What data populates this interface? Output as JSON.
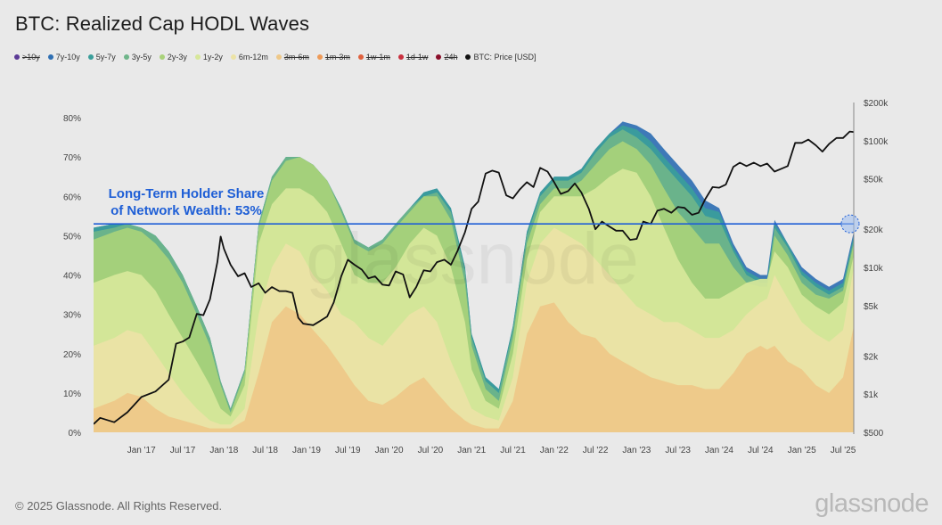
{
  "header": {
    "title": "BTC: Realized Cap HODL Waves"
  },
  "legend": [
    {
      "label": ">10y",
      "color": "#5b3a96",
      "active": false
    },
    {
      "label": "7y-10y",
      "color": "#2f6fb3",
      "active": true
    },
    {
      "label": "5y-7y",
      "color": "#3a9e9a",
      "active": true
    },
    {
      "label": "3y-5y",
      "color": "#6fb58a",
      "active": true
    },
    {
      "label": "2y-3y",
      "color": "#a9d27a",
      "active": true
    },
    {
      "label": "1y-2y",
      "color": "#d7e79a",
      "active": true
    },
    {
      "label": "6m-12m",
      "color": "#ece3a6",
      "active": true
    },
    {
      "label": "3m-6m",
      "color": "#eec888",
      "active": false
    },
    {
      "label": "1m-3m",
      "color": "#ee9a57",
      "active": false
    },
    {
      "label": "1w-1m",
      "color": "#e0613e",
      "active": false
    },
    {
      "label": "1d-1w",
      "color": "#c9303f",
      "active": false
    },
    {
      "label": "24h",
      "color": "#8b0f2a",
      "active": false
    },
    {
      "label": "BTC: Price [USD]",
      "color": "#111111",
      "active": true
    }
  ],
  "watermark": "glassnode",
  "footer": {
    "copyright": "© 2025 Glassnode. All Rights Reserved.",
    "brand": "glassnode"
  },
  "chart_data": {
    "type": "area",
    "title": "BTC: Realized Cap HODL Waves",
    "xlabel": "",
    "ylabel": "",
    "x_ticks": [
      "Jan '17",
      "Jul '17",
      "Jan '18",
      "Jul '18",
      "Jan '19",
      "Jul '19",
      "Jan '20",
      "Jul '20",
      "Jan '21",
      "Jul '21",
      "Jan '22",
      "Jul '22",
      "Jan '23",
      "Jul '23",
      "Jan '24",
      "Jul '24",
      "Jan '25",
      "Jul '25"
    ],
    "x_range": [
      2016.42,
      2025.63
    ],
    "y_left": {
      "ticks": [
        "0%",
        "10%",
        "20%",
        "30%",
        "40%",
        "50%",
        "60%",
        "70%",
        "80%"
      ],
      "range": [
        0,
        80
      ]
    },
    "y_right": {
      "ticks": [
        "$500",
        "$1k",
        "$2k",
        "$5k",
        "$10k",
        "$20k",
        "$50k",
        "$100k",
        "$200k"
      ],
      "scale": "log",
      "range": [
        500,
        200000
      ]
    },
    "x": [
      2016.42,
      2016.67,
      2016.83,
      2017.0,
      2017.17,
      2017.33,
      2017.5,
      2017.67,
      2017.83,
      2017.96,
      2018.08,
      2018.25,
      2018.42,
      2018.58,
      2018.75,
      2018.92,
      2019.08,
      2019.25,
      2019.42,
      2019.58,
      2019.75,
      2019.92,
      2020.08,
      2020.25,
      2020.42,
      2020.58,
      2020.75,
      2020.92,
      2021.0,
      2021.17,
      2021.33,
      2021.5,
      2021.67,
      2021.83,
      2022.0,
      2022.17,
      2022.33,
      2022.5,
      2022.67,
      2022.83,
      2023.0,
      2023.17,
      2023.33,
      2023.5,
      2023.67,
      2023.83,
      2024.0,
      2024.17,
      2024.33,
      2024.5,
      2024.58,
      2024.67,
      2024.83,
      2025.0,
      2025.17,
      2025.33,
      2025.5,
      2025.63
    ],
    "series_cumulative": [
      {
        "name": "3m-6m",
        "values": [
          6,
          8,
          10,
          9,
          6,
          4,
          3,
          2,
          1,
          1,
          1,
          3,
          15,
          28,
          32,
          30,
          26,
          22,
          17,
          12,
          8,
          7,
          9,
          12,
          14,
          10,
          6,
          3,
          2,
          1,
          1,
          8,
          25,
          32,
          33,
          28,
          25,
          24,
          20,
          18,
          16,
          14,
          13,
          12,
          12,
          11,
          11,
          15,
          20,
          22,
          21,
          22,
          18,
          16,
          12,
          10,
          14,
          27
        ]
      },
      {
        "name": "6m-12m",
        "values": [
          22,
          24,
          26,
          25,
          20,
          15,
          10,
          6,
          3,
          2,
          2,
          6,
          30,
          42,
          48,
          46,
          40,
          36,
          30,
          28,
          24,
          22,
          26,
          30,
          32,
          28,
          18,
          10,
          6,
          4,
          3,
          14,
          38,
          48,
          52,
          50,
          48,
          44,
          40,
          36,
          32,
          30,
          28,
          28,
          26,
          24,
          24,
          26,
          30,
          33,
          34,
          40,
          34,
          28,
          25,
          23,
          26,
          42
        ]
      },
      {
        "name": "1y-2y",
        "values": [
          38,
          40,
          41,
          40,
          36,
          30,
          24,
          18,
          12,
          6,
          4,
          12,
          48,
          58,
          62,
          62,
          60,
          56,
          48,
          40,
          38,
          38,
          42,
          48,
          52,
          50,
          42,
          28,
          16,
          8,
          6,
          20,
          44,
          56,
          60,
          60,
          60,
          62,
          65,
          67,
          66,
          60,
          52,
          44,
          38,
          34,
          34,
          36,
          38,
          39,
          39,
          46,
          42,
          35,
          32,
          30,
          33,
          45
        ]
      },
      {
        "name": "2y-3y",
        "values": [
          49,
          51,
          52,
          51,
          48,
          44,
          38,
          30,
          22,
          12,
          5,
          15,
          52,
          64,
          69,
          70,
          68,
          64,
          56,
          48,
          46,
          48,
          52,
          56,
          60,
          60,
          54,
          38,
          22,
          11,
          8,
          24,
          48,
          58,
          62,
          62,
          64,
          68,
          72,
          74,
          72,
          68,
          62,
          56,
          52,
          48,
          48,
          42,
          38,
          37,
          37,
          50,
          45,
          38,
          35,
          34,
          36,
          48
        ]
      },
      {
        "name": "3y-5y",
        "values": [
          51,
          52,
          53,
          52,
          50,
          46,
          40,
          32,
          24,
          13,
          6,
          16,
          53,
          65,
          70,
          70,
          68,
          64,
          57,
          49,
          47,
          49,
          53,
          57,
          60,
          61,
          56,
          41,
          24,
          13,
          10,
          26,
          50,
          60,
          64,
          64,
          66,
          71,
          75,
          77,
          75,
          72,
          68,
          64,
          60,
          55,
          54,
          46,
          40,
          38,
          38,
          52,
          47,
          40,
          37,
          35,
          37,
          49
        ]
      },
      {
        "name": "5y-7y",
        "values": [
          52,
          53,
          53,
          52,
          50,
          46,
          40,
          32,
          24,
          13,
          6,
          16,
          53,
          65,
          70,
          70,
          68,
          64,
          57,
          49,
          47,
          49,
          53,
          57,
          61,
          62,
          57,
          42,
          25,
          14,
          11,
          27,
          51,
          61,
          65,
          65,
          67,
          72,
          76,
          78,
          77,
          74,
          70,
          66,
          62,
          57,
          56,
          47,
          41,
          39,
          39,
          53,
          48,
          41,
          38,
          36,
          38,
          50
        ]
      },
      {
        "name": "7y-10y",
        "values": [
          52,
          53,
          53,
          52,
          50,
          46,
          40,
          32,
          24,
          13,
          6,
          16,
          53,
          65,
          70,
          70,
          68,
          64,
          57,
          49,
          47,
          49,
          53,
          57,
          61,
          62,
          57,
          42,
          25,
          14,
          11,
          27,
          51,
          61,
          65,
          65,
          67,
          72,
          76,
          79,
          78,
          76,
          72,
          68,
          64,
          59,
          57,
          48,
          42,
          40,
          40,
          54,
          48,
          42,
          39,
          37,
          39,
          51
        ]
      }
    ],
    "price": {
      "name": "BTC: Price [USD]",
      "x": [
        2016.42,
        2016.5,
        2016.67,
        2016.83,
        2017.0,
        2017.17,
        2017.33,
        2017.42,
        2017.5,
        2017.58,
        2017.67,
        2017.75,
        2017.83,
        2017.92,
        2017.96,
        2018.0,
        2018.08,
        2018.17,
        2018.25,
        2018.33,
        2018.42,
        2018.5,
        2018.58,
        2018.67,
        2018.75,
        2018.83,
        2018.9,
        2018.96,
        2019.08,
        2019.17,
        2019.25,
        2019.33,
        2019.42,
        2019.5,
        2019.58,
        2019.67,
        2019.75,
        2019.83,
        2019.92,
        2020.0,
        2020.08,
        2020.17,
        2020.25,
        2020.33,
        2020.42,
        2020.5,
        2020.58,
        2020.67,
        2020.75,
        2020.83,
        2020.92,
        2021.0,
        2021.08,
        2021.17,
        2021.25,
        2021.33,
        2021.42,
        2021.5,
        2021.58,
        2021.67,
        2021.75,
        2021.83,
        2021.92,
        2022.0,
        2022.08,
        2022.17,
        2022.25,
        2022.33,
        2022.42,
        2022.5,
        2022.58,
        2022.67,
        2022.75,
        2022.83,
        2022.92,
        2023.0,
        2023.08,
        2023.17,
        2023.25,
        2023.33,
        2023.42,
        2023.5,
        2023.58,
        2023.67,
        2023.75,
        2023.83,
        2023.92,
        2024.0,
        2024.08,
        2024.17,
        2024.25,
        2024.33,
        2024.42,
        2024.5,
        2024.58,
        2024.67,
        2024.75,
        2024.83,
        2024.92,
        2025.0,
        2025.08,
        2025.17,
        2025.25,
        2025.33,
        2025.42,
        2025.5,
        2025.58,
        2025.63
      ],
      "values": [
        580,
        650,
        600,
        720,
        950,
        1050,
        1300,
        2500,
        2600,
        2800,
        4300,
        4200,
        5600,
        11000,
        17500,
        14000,
        10500,
        8500,
        9000,
        7000,
        7500,
        6300,
        7000,
        6500,
        6500,
        6300,
        4000,
        3600,
        3500,
        3800,
        4100,
        5300,
        8500,
        11500,
        10500,
        9600,
        8200,
        8500,
        7300,
        7200,
        9300,
        8800,
        5800,
        7000,
        9500,
        9300,
        11000,
        11500,
        10500,
        13500,
        19000,
        29000,
        33000,
        55000,
        58000,
        56000,
        37000,
        35000,
        41000,
        47000,
        43000,
        61000,
        57000,
        47000,
        38000,
        40000,
        46000,
        39000,
        29000,
        20000,
        23000,
        21000,
        19500,
        19500,
        16500,
        16800,
        23000,
        22000,
        28000,
        29000,
        27000,
        30000,
        29500,
        26000,
        27000,
        34500,
        43000,
        42500,
        45000,
        62000,
        67000,
        63000,
        67000,
        63000,
        66000,
        57000,
        60000,
        63000,
        96000,
        96000,
        102000,
        92000,
        82000,
        94000,
        105000,
        105000,
        118000,
        117000
      ]
    },
    "reference_line": {
      "value": 53,
      "label_line1": "Long-Term Holder Share",
      "label_line2": "of Network Wealth: 53%"
    }
  }
}
